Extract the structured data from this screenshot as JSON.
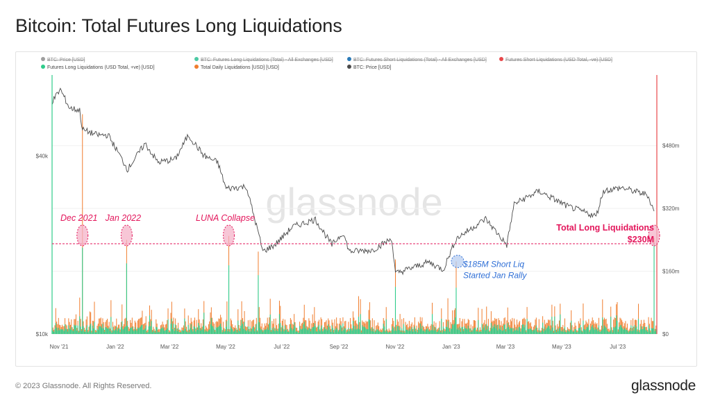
{
  "title": "Bitcoin: Total Futures Long Liquidations",
  "footer": {
    "copyright": "© 2023 Glassnode. All Rights Reserved.",
    "brand": "glassnode"
  },
  "watermark": "glassnode",
  "colors": {
    "price": "#4a4a4a",
    "long_liq": "#2ecc8a",
    "total_liq": "#f07d2e",
    "annotation_pink": "#e3165b",
    "annotation_blue": "#2f6fd6",
    "right_axis": "#e8474a",
    "left_axis": "#2ecc8a"
  },
  "chart_data": {
    "type": "line",
    "legend": [
      {
        "label": "BTC: Price [USD]",
        "color": "#9e9e9e",
        "hidden": true
      },
      {
        "label": "BTC: Futures Long Liquidations (Total) - All Exchanges [USD]",
        "color": "#4cc9a4",
        "hidden": true
      },
      {
        "label": "BTC: Futures Short Liquidations (Total) - All Exchanges [USD]",
        "color": "#2a7ab8",
        "hidden": true
      },
      {
        "label": "Futures Short Liquidations (USD Total, -ve) [USD]",
        "color": "#e8474a",
        "hidden": true
      },
      {
        "label": "Futures Long Liquidations (USD Total, +ve) [USD]",
        "color": "#2ecc8a",
        "hidden": false
      },
      {
        "label": "Total Daily Liquidations [USD] [USD]",
        "color": "#f07d2e",
        "hidden": false
      },
      {
        "label": "BTC: Price [USD]",
        "color": "#4a4a4a",
        "hidden": false
      }
    ],
    "x_ticks": [
      "Nov '21",
      "Jan '22",
      "Mar '22",
      "May '22",
      "Jul '22",
      "Sep '22",
      "Nov '22",
      "Jan '23",
      "Mar '23",
      "May '23",
      "Jul '23"
    ],
    "x_range": [
      "2021-11-01",
      "2023-08-20"
    ],
    "left_axis": {
      "scale": "log",
      "ticks": [
        "$10k",
        "$40k"
      ],
      "range": [
        10000,
        75000
      ]
    },
    "right_axis": {
      "scale": "linear",
      "ticks": [
        "$0",
        "$160m",
        "$320m",
        "$480m"
      ],
      "range": [
        0,
        660
      ]
    },
    "price_series": {
      "name": "BTC: Price [USD]",
      "points": [
        [
          "2021-11-01",
          61000
        ],
        [
          "2021-11-10",
          67000
        ],
        [
          "2021-11-20",
          58000
        ],
        [
          "2021-12-01",
          57000
        ],
        [
          "2021-12-04",
          49000
        ],
        [
          "2021-12-20",
          47000
        ],
        [
          "2022-01-01",
          47000
        ],
        [
          "2022-01-10",
          42000
        ],
        [
          "2022-01-22",
          36000
        ],
        [
          "2022-02-10",
          44000
        ],
        [
          "2022-02-24",
          38000
        ],
        [
          "2022-03-15",
          39000
        ],
        [
          "2022-03-29",
          47000
        ],
        [
          "2022-04-15",
          40000
        ],
        [
          "2022-04-30",
          38000
        ],
        [
          "2022-05-09",
          31000
        ],
        [
          "2022-05-31",
          31500
        ],
        [
          "2022-06-13",
          22000
        ],
        [
          "2022-06-18",
          19000
        ],
        [
          "2022-07-01",
          20000
        ],
        [
          "2022-07-20",
          23000
        ],
        [
          "2022-08-14",
          24400
        ],
        [
          "2022-09-01",
          20000
        ],
        [
          "2022-09-13",
          22000
        ],
        [
          "2022-09-20",
          19000
        ],
        [
          "2022-10-15",
          19200
        ],
        [
          "2022-11-05",
          21000
        ],
        [
          "2022-11-09",
          16000
        ],
        [
          "2022-12-15",
          17500
        ],
        [
          "2022-12-31",
          16500
        ],
        [
          "2023-01-14",
          21000
        ],
        [
          "2023-02-15",
          24500
        ],
        [
          "2023-03-10",
          20000
        ],
        [
          "2023-03-18",
          27500
        ],
        [
          "2023-04-14",
          30400
        ],
        [
          "2023-05-15",
          27000
        ],
        [
          "2023-06-15",
          25000
        ],
        [
          "2023-06-23",
          30500
        ],
        [
          "2023-07-13",
          31200
        ],
        [
          "2023-08-10",
          29500
        ],
        [
          "2023-08-17",
          26000
        ]
      ]
    },
    "liquidation_series": [
      {
        "name": "Futures Long Liquidations (USD Total, +ve) [USD]",
        "unit": "$m",
        "spikes": [
          [
            "2021-12-04",
            220
          ],
          [
            "2022-01-21",
            180
          ],
          [
            "2022-05-12",
            175
          ],
          [
            "2022-06-13",
            150
          ],
          [
            "2022-11-09",
            120
          ],
          [
            "2023-08-17",
            230
          ]
        ]
      },
      {
        "name": "Total Daily Liquidations [USD] [USD]",
        "unit": "$m",
        "spikes": [
          [
            "2021-12-04",
            560
          ],
          [
            "2022-01-21",
            240
          ],
          [
            "2022-05-12",
            250
          ],
          [
            "2022-06-13",
            210
          ],
          [
            "2022-11-09",
            190
          ],
          [
            "2023-01-14",
            185
          ],
          [
            "2023-08-17",
            245
          ]
        ]
      }
    ],
    "reference_line": {
      "value_m": 230
    },
    "annotations": [
      {
        "label": "Dec 2021",
        "date": "2021-12-04",
        "value_m": 230,
        "color": "pink"
      },
      {
        "label": "Jan 2022",
        "date": "2022-01-21",
        "value_m": 230,
        "color": "pink"
      },
      {
        "label": "LUNA Collapse",
        "date": "2022-05-12",
        "value_m": 230,
        "color": "pink"
      },
      {
        "label_lines": [
          "Total Long Liquidations",
          "$230M"
        ],
        "date": "2023-08-17",
        "value_m": 230,
        "color": "pink"
      },
      {
        "label_lines": [
          "$185M Short Liq",
          "Started Jan Rally"
        ],
        "date": "2023-01-14",
        "value_m": 185,
        "color": "blue"
      }
    ]
  }
}
